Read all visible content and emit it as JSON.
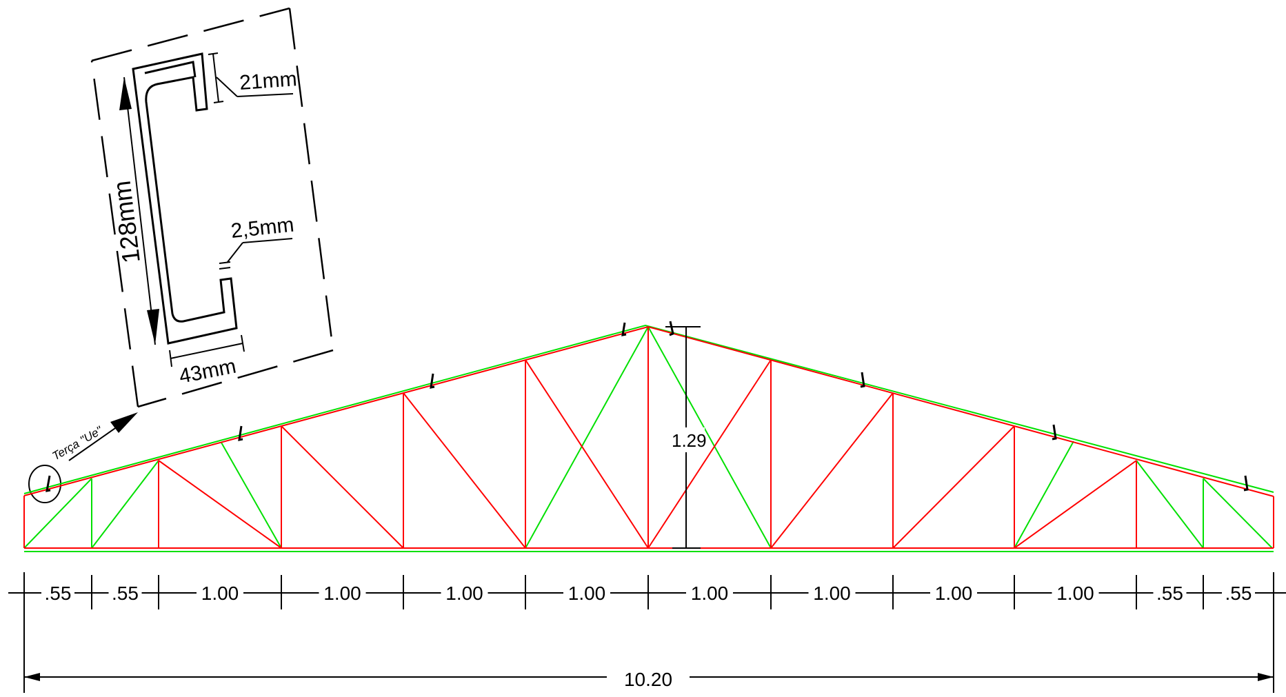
{
  "detail": {
    "dim_flange_lip": "21mm",
    "dim_web_height": "128mm",
    "dim_thickness": "2,5mm",
    "dim_flange_width": "43mm",
    "callout": "Terça \"Ue\""
  },
  "truss": {
    "height_label": "1.29",
    "panel_spacings": [
      ".55",
      ".55",
      "1.00",
      "1.00",
      "1.00",
      "1.00",
      "1.00",
      "1.00",
      "1.00",
      "1.00",
      ".55",
      ".55"
    ],
    "total_span": "10.20"
  },
  "colors": {
    "chord": "#ff0000",
    "bracing": "#00e000",
    "dimension": "#000000"
  }
}
